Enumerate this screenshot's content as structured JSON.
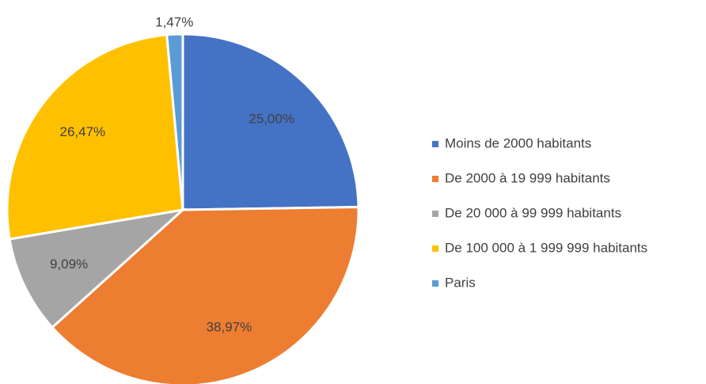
{
  "chart_data": {
    "type": "pie",
    "categories": [
      "Moins de 2000 habitants",
      "De 2000 à 19 999 habitants",
      "De 20 000 à 99 999 habitants",
      "De 100 000 à 1 999 999 habitants",
      "Paris"
    ],
    "values": [
      25.0,
      38.97,
      9.09,
      26.47,
      1.47
    ],
    "value_labels": [
      "25,00%",
      "38,97%",
      "9,09%",
      "26,47%",
      "1,47%"
    ],
    "colors": [
      "#4472c4",
      "#ed7d31",
      "#a5a5a5",
      "#ffc000",
      "#5b9bd5"
    ],
    "legend": "right"
  }
}
